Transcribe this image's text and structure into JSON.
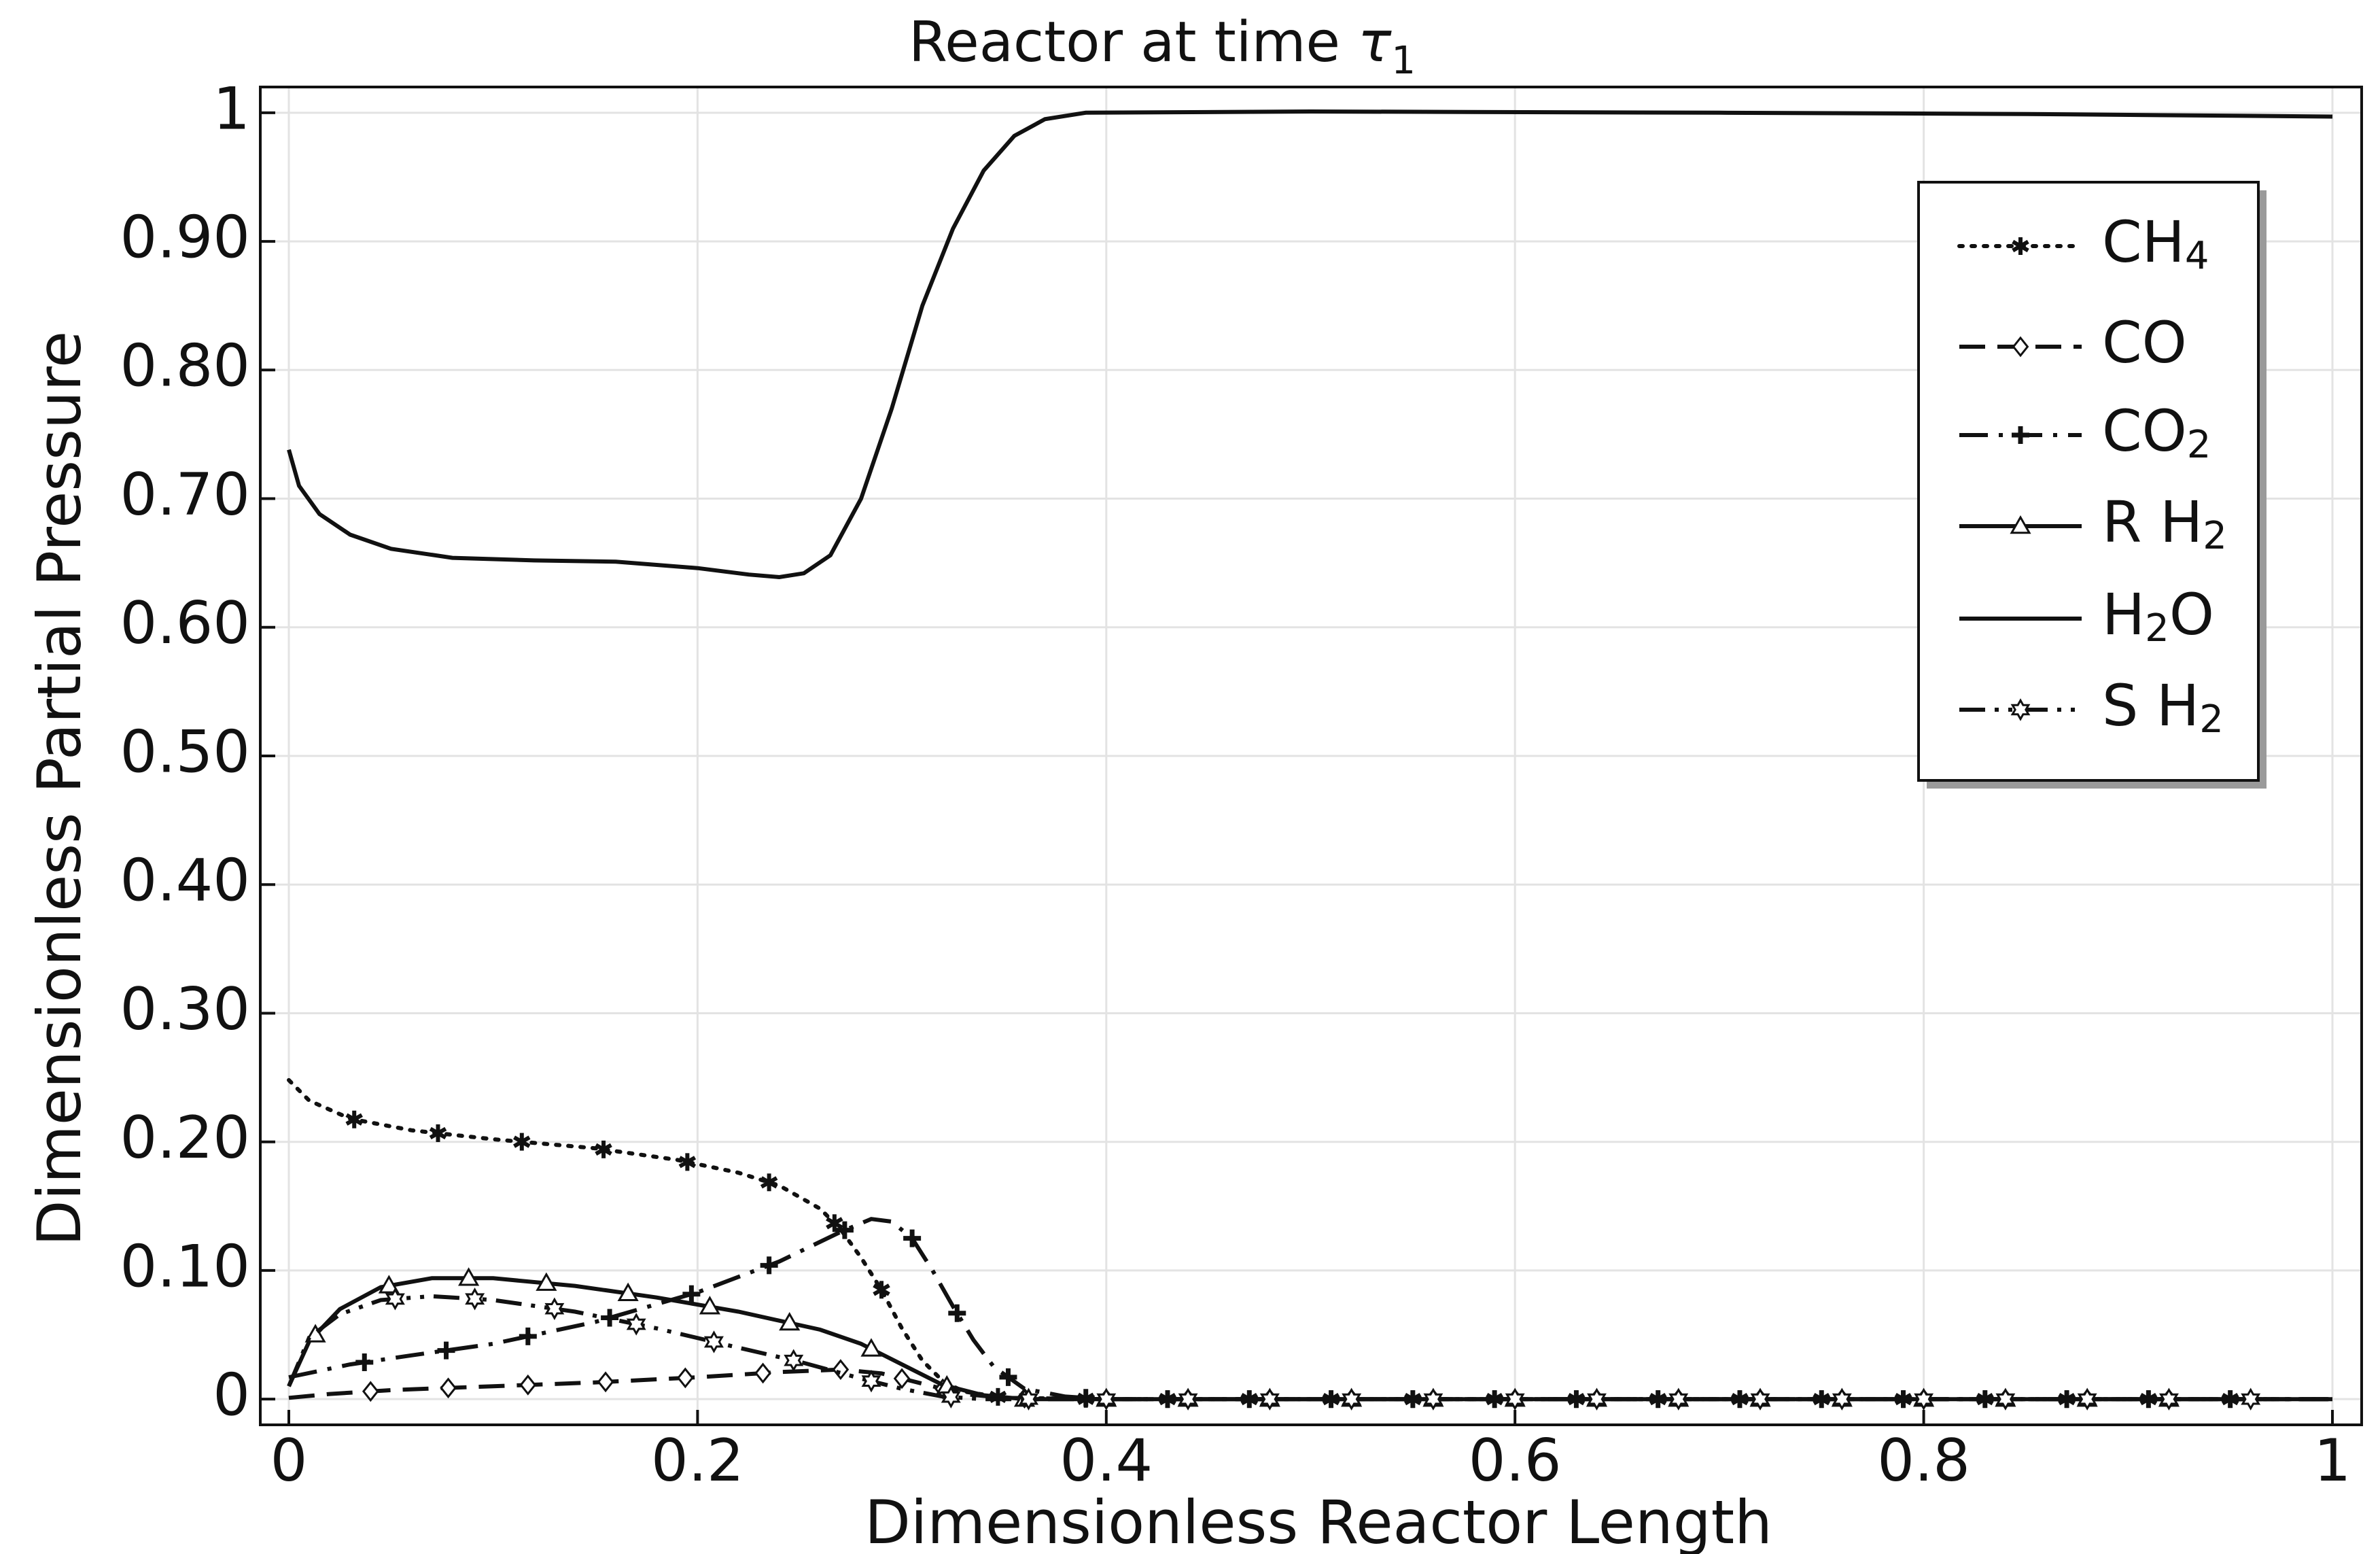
{
  "chart_data": {
    "type": "line",
    "title": "Reactor at time",
    "title_symbol": "τ",
    "title_subscript": "1",
    "xlabel": "Dimensionless Reactor Length",
    "ylabel": "Dimensionless Partial Pressure",
    "xlim": [
      0,
      1
    ],
    "ylim": [
      -0.02,
      1.02
    ],
    "grid": true,
    "legend_position": "top-right",
    "x_ticks": [
      {
        "value": 0,
        "label": "0"
      },
      {
        "value": 0.2,
        "label": "0.2"
      },
      {
        "value": 0.4,
        "label": "0.4"
      },
      {
        "value": 0.6,
        "label": "0.6"
      },
      {
        "value": 0.8,
        "label": "0.8"
      },
      {
        "value": 1,
        "label": "1"
      }
    ],
    "y_ticks": [
      {
        "value": 0,
        "label": "0"
      },
      {
        "value": 0.1,
        "label": "0.10"
      },
      {
        "value": 0.2,
        "label": "0.20"
      },
      {
        "value": 0.3,
        "label": "0.30"
      },
      {
        "value": 0.4,
        "label": "0.40"
      },
      {
        "value": 0.5,
        "label": "0.50"
      },
      {
        "value": 0.6,
        "label": "0.60"
      },
      {
        "value": 0.7,
        "label": "0.70"
      },
      {
        "value": 0.8,
        "label": "0.80"
      },
      {
        "value": 0.9,
        "label": "0.90"
      },
      {
        "value": 1,
        "label": "1"
      }
    ],
    "series": [
      {
        "name": "CH4",
        "label_main": "CH",
        "label_sub": "4",
        "label_suffix": "",
        "line_style": "dotted",
        "marker": "asterisk",
        "points": [
          [
            0,
            0.248
          ],
          [
            0.01,
            0.232
          ],
          [
            0.03,
            0.218
          ],
          [
            0.06,
            0.209
          ],
          [
            0.1,
            0.202
          ],
          [
            0.15,
            0.195
          ],
          [
            0.19,
            0.186
          ],
          [
            0.22,
            0.176
          ],
          [
            0.24,
            0.166
          ],
          [
            0.26,
            0.148
          ],
          [
            0.27,
            0.132
          ],
          [
            0.28,
            0.11
          ],
          [
            0.29,
            0.085
          ],
          [
            0.3,
            0.055
          ],
          [
            0.31,
            0.03
          ],
          [
            0.32,
            0.014
          ],
          [
            0.33,
            0.006
          ],
          [
            0.35,
            0.001
          ],
          [
            0.4,
            0
          ],
          [
            1,
            0
          ]
        ],
        "marker_x": [
          0.032,
          0.073,
          0.114,
          0.154,
          0.195,
          0.235,
          0.267,
          0.29,
          0.347,
          0.39,
          0.43,
          0.47,
          0.51,
          0.55,
          0.59,
          0.63,
          0.67,
          0.71,
          0.75,
          0.79,
          0.83,
          0.87,
          0.91,
          0.95
        ]
      },
      {
        "name": "CO",
        "label_main": "CO",
        "label_sub": "",
        "label_suffix": "",
        "line_style": "long-dash",
        "marker": "diamond",
        "points": [
          [
            0,
            0.001
          ],
          [
            0.02,
            0.004
          ],
          [
            0.05,
            0.007
          ],
          [
            0.1,
            0.01
          ],
          [
            0.15,
            0.013
          ],
          [
            0.2,
            0.017
          ],
          [
            0.24,
            0.021
          ],
          [
            0.27,
            0.023
          ],
          [
            0.29,
            0.02
          ],
          [
            0.31,
            0.012
          ],
          [
            0.33,
            0.004
          ],
          [
            0.35,
            0.001
          ],
          [
            0.4,
            0
          ],
          [
            1,
            0
          ]
        ],
        "marker_x": [
          0.04,
          0.078,
          0.117,
          0.155,
          0.194,
          0.232,
          0.27,
          0.3,
          0.32,
          0.36,
          0.4,
          0.44,
          0.48,
          0.52,
          0.56,
          0.6,
          0.64,
          0.68,
          0.72,
          0.76,
          0.8,
          0.84,
          0.88,
          0.92
        ]
      },
      {
        "name": "CO2",
        "label_main": "CO",
        "label_sub": "2",
        "label_suffix": "",
        "line_style": "dash-dot",
        "marker": "plus",
        "points": [
          [
            0,
            0.017
          ],
          [
            0.03,
            0.027
          ],
          [
            0.06,
            0.034
          ],
          [
            0.1,
            0.043
          ],
          [
            0.15,
            0.06
          ],
          [
            0.2,
            0.083
          ],
          [
            0.24,
            0.107
          ],
          [
            0.27,
            0.13
          ],
          [
            0.285,
            0.14
          ],
          [
            0.295,
            0.138
          ],
          [
            0.305,
            0.125
          ],
          [
            0.315,
            0.1
          ],
          [
            0.325,
            0.072
          ],
          [
            0.335,
            0.046
          ],
          [
            0.345,
            0.025
          ],
          [
            0.36,
            0.008
          ],
          [
            0.38,
            0.002
          ],
          [
            0.4,
            0
          ],
          [
            1,
            0
          ]
        ],
        "marker_x": [
          0.037,
          0.077,
          0.117,
          0.157,
          0.197,
          0.235,
          0.272,
          0.305,
          0.327,
          0.352,
          0.39,
          0.43,
          0.47,
          0.51,
          0.55,
          0.59,
          0.63,
          0.67,
          0.71,
          0.75,
          0.79,
          0.83,
          0.87,
          0.91,
          0.95
        ]
      },
      {
        "name": "R H2",
        "label_main": "R H",
        "label_sub": "2",
        "label_suffix": "",
        "line_style": "solid",
        "marker": "triangle",
        "points": [
          [
            0,
            0.01
          ],
          [
            0.01,
            0.045
          ],
          [
            0.025,
            0.07
          ],
          [
            0.045,
            0.087
          ],
          [
            0.07,
            0.094
          ],
          [
            0.1,
            0.094
          ],
          [
            0.14,
            0.088
          ],
          [
            0.18,
            0.079
          ],
          [
            0.22,
            0.068
          ],
          [
            0.26,
            0.054
          ],
          [
            0.28,
            0.043
          ],
          [
            0.3,
            0.027
          ],
          [
            0.32,
            0.011
          ],
          [
            0.34,
            0.003
          ],
          [
            0.36,
            0
          ],
          [
            1,
            0
          ]
        ],
        "marker_x": [
          0.013,
          0.049,
          0.088,
          0.126,
          0.166,
          0.206,
          0.245,
          0.285,
          0.322,
          0.36,
          0.4,
          0.44,
          0.48,
          0.52,
          0.56,
          0.6,
          0.64,
          0.68,
          0.72,
          0.76,
          0.8,
          0.84,
          0.88,
          0.92
        ]
      },
      {
        "name": "H2O",
        "label_main": "H",
        "label_sub": "2",
        "label_suffix": "O",
        "line_style": "solid",
        "marker": "none",
        "points": [
          [
            0,
            0.738
          ],
          [
            0.005,
            0.71
          ],
          [
            0.015,
            0.688
          ],
          [
            0.03,
            0.672
          ],
          [
            0.05,
            0.661
          ],
          [
            0.08,
            0.654
          ],
          [
            0.12,
            0.652
          ],
          [
            0.16,
            0.651
          ],
          [
            0.2,
            0.646
          ],
          [
            0.225,
            0.641
          ],
          [
            0.24,
            0.639
          ],
          [
            0.252,
            0.642
          ],
          [
            0.265,
            0.656
          ],
          [
            0.28,
            0.7
          ],
          [
            0.295,
            0.77
          ],
          [
            0.31,
            0.85
          ],
          [
            0.325,
            0.91
          ],
          [
            0.34,
            0.955
          ],
          [
            0.355,
            0.982
          ],
          [
            0.37,
            0.995
          ],
          [
            0.39,
            1.0
          ],
          [
            0.5,
            1.001
          ],
          [
            0.7,
            1.0
          ],
          [
            0.85,
            0.999
          ],
          [
            1,
            0.997
          ]
        ],
        "marker_x": []
      },
      {
        "name": "S H2",
        "label_main": "S H",
        "label_sub": "2",
        "label_suffix": "",
        "line_style": "dash-dot-dot",
        "marker": "star",
        "points": [
          [
            0,
            0.01
          ],
          [
            0.01,
            0.048
          ],
          [
            0.025,
            0.066
          ],
          [
            0.045,
            0.077
          ],
          [
            0.07,
            0.08
          ],
          [
            0.1,
            0.077
          ],
          [
            0.14,
            0.068
          ],
          [
            0.18,
            0.055
          ],
          [
            0.22,
            0.04
          ],
          [
            0.25,
            0.029
          ],
          [
            0.28,
            0.016
          ],
          [
            0.3,
            0.008
          ],
          [
            0.32,
            0.002
          ],
          [
            0.34,
            0
          ],
          [
            1,
            0
          ]
        ],
        "marker_x": [
          0.052,
          0.091,
          0.13,
          0.17,
          0.208,
          0.247,
          0.285,
          0.324,
          0.362,
          0.4,
          0.44,
          0.48,
          0.52,
          0.56,
          0.6,
          0.64,
          0.68,
          0.72,
          0.76,
          0.8,
          0.84,
          0.88,
          0.92,
          0.96
        ]
      }
    ]
  }
}
